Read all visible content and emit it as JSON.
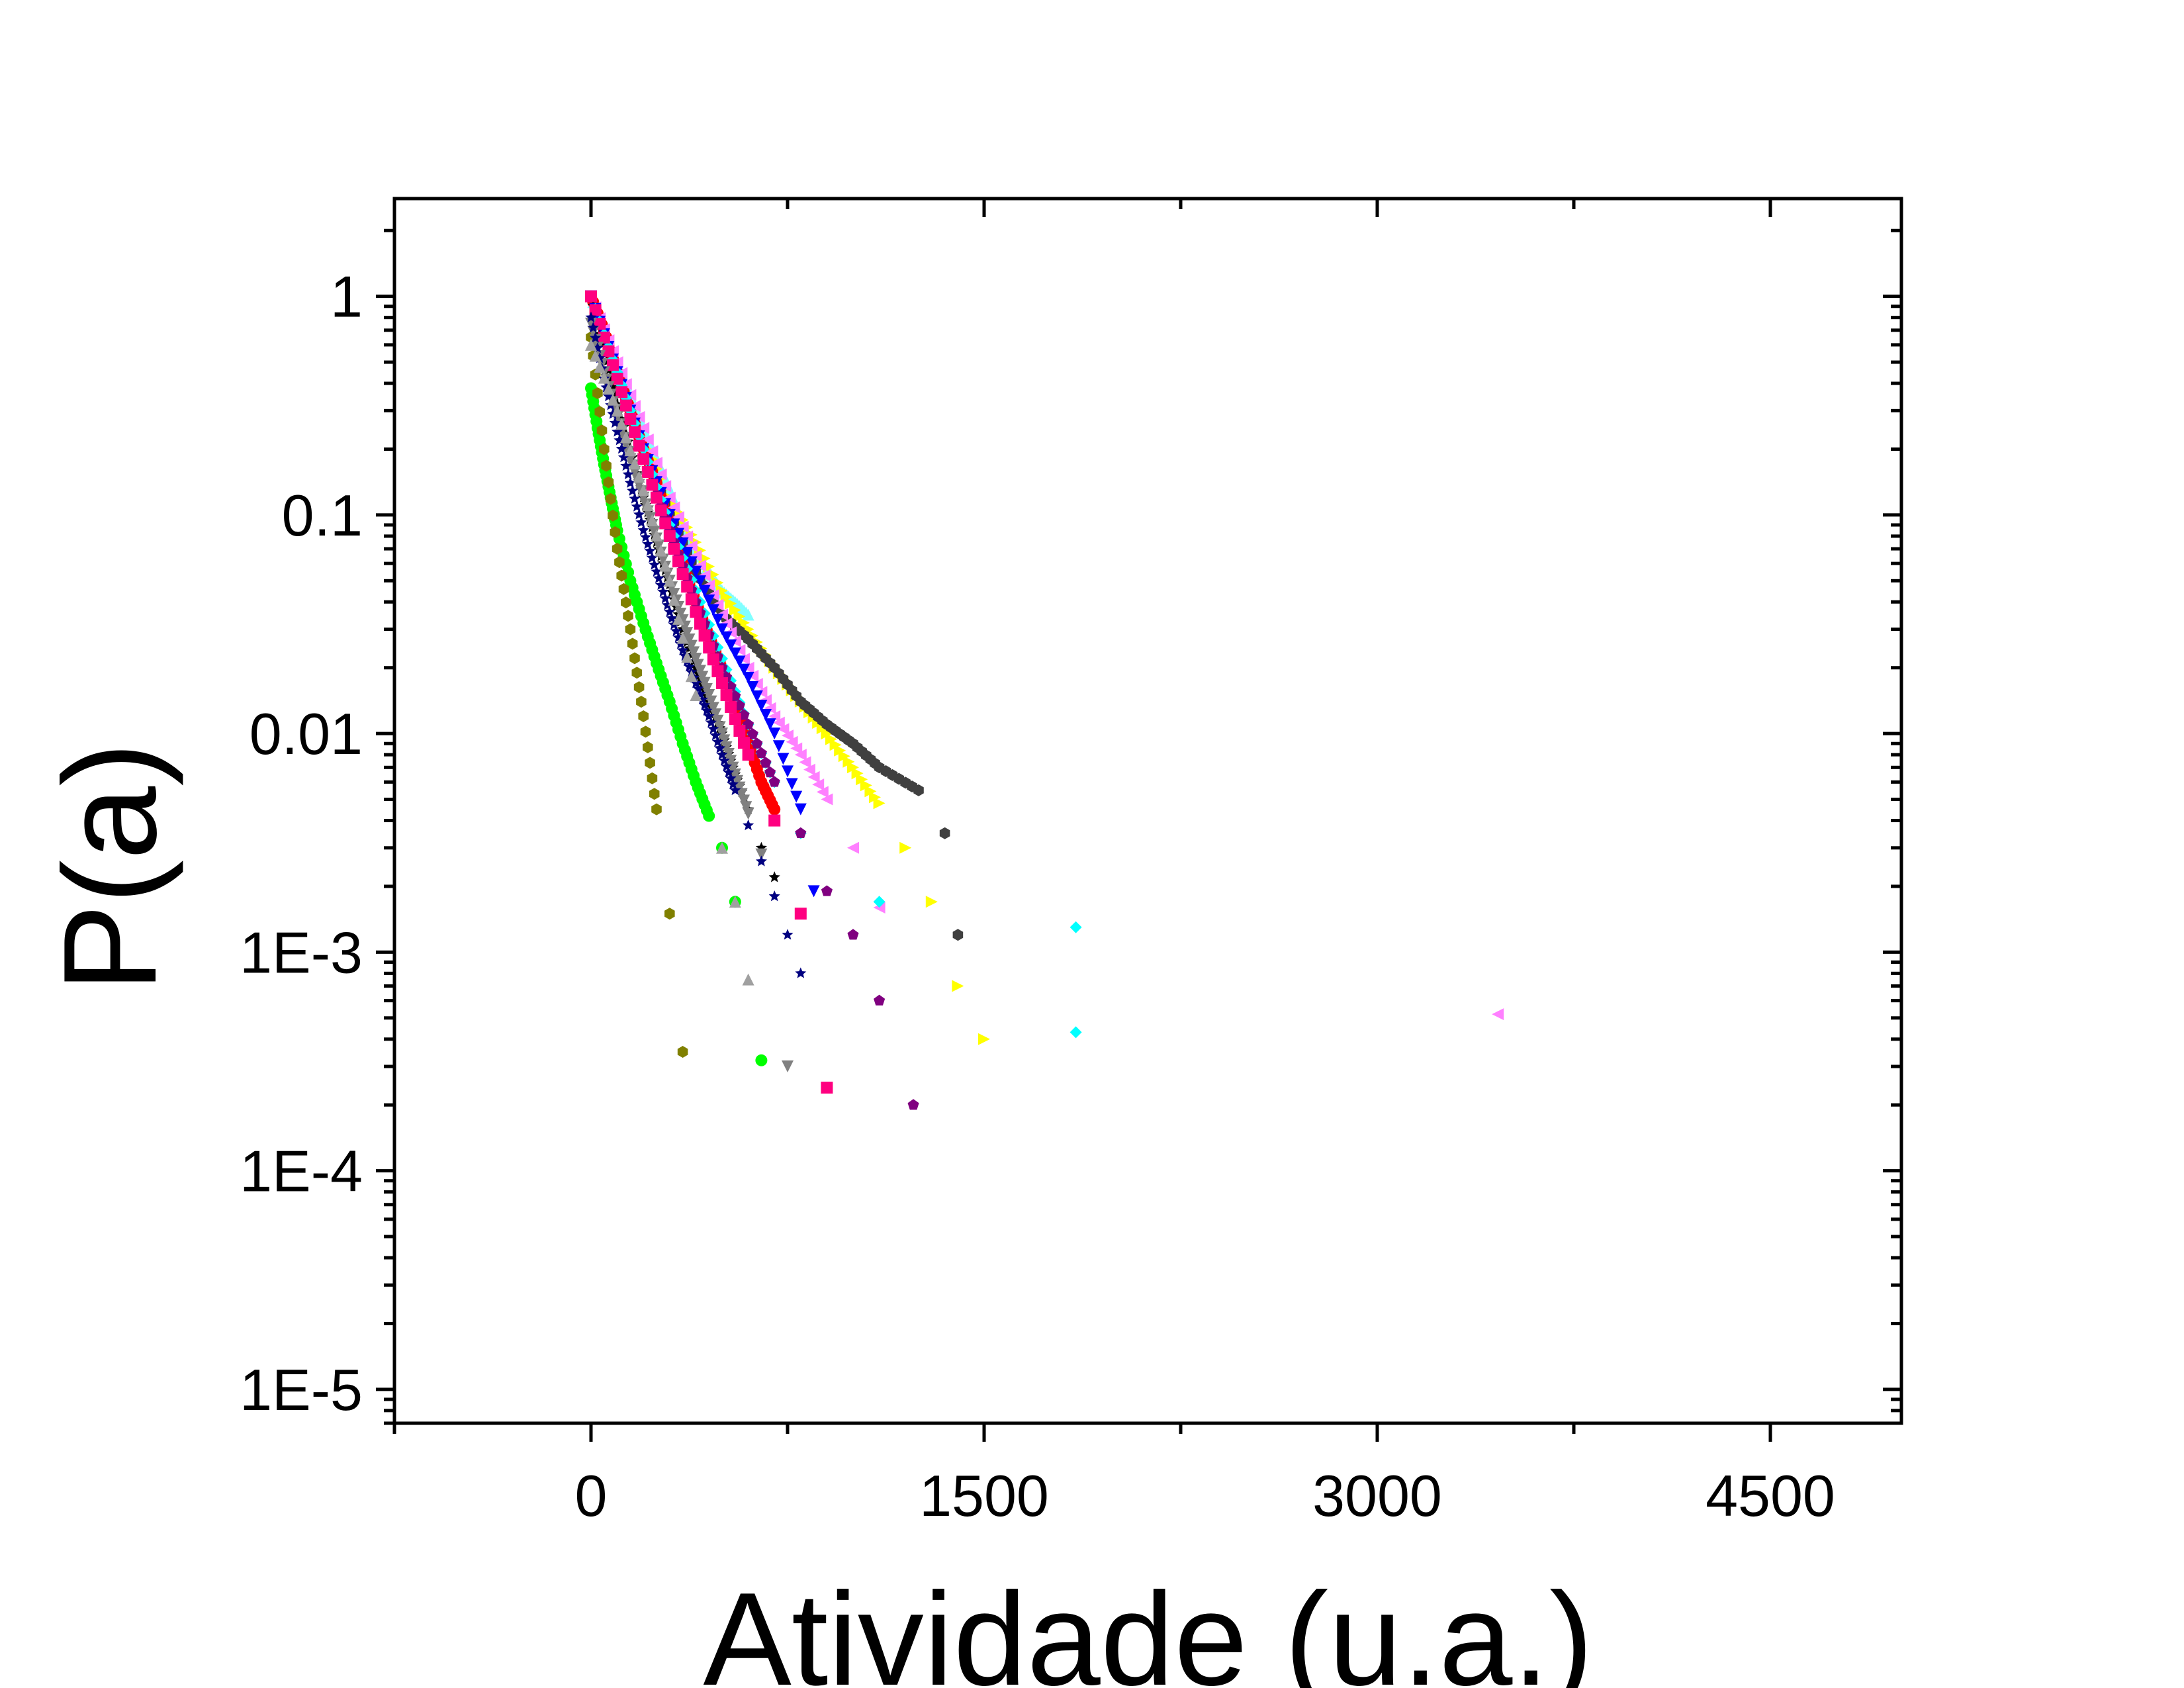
{
  "chart_data": {
    "type": "scatter",
    "title": "",
    "xlabel": "Atividade (u.a.)",
    "ylabel": "P(a)",
    "xlim": [
      -750,
      5000
    ],
    "ylim": [
      7e-06,
      2.8
    ],
    "yscale": "log",
    "x_ticks": [
      0,
      1500,
      3000,
      4500
    ],
    "x_tick_labels": [
      "0",
      "1500",
      "3000",
      "4500"
    ],
    "y_ticks": [
      1,
      0.1,
      0.01,
      0.001,
      0.0001,
      1e-05
    ],
    "y_tick_labels": [
      "1",
      "0.1",
      "0.01",
      "1E-3",
      "1E-4",
      "1E-5"
    ],
    "grid": false,
    "legend": "none",
    "series": [
      {
        "color": "#80FFFF",
        "marker": "triangle-up",
        "x": [
          0,
          50,
          100,
          150,
          200,
          250,
          300,
          350,
          400,
          450,
          500,
          550,
          600
        ],
        "y": [
          1,
          0.7,
          0.5,
          0.35,
          0.25,
          0.18,
          0.13,
          0.09,
          0.07,
          0.055,
          0.045,
          0.04,
          0.035
        ]
      },
      {
        "color": "#FFFF00",
        "marker": "triangle-right",
        "x": [
          0,
          100,
          200,
          300,
          400,
          500,
          600,
          700,
          800,
          900,
          1000,
          1100,
          1200,
          1300,
          1400,
          1500
        ],
        "y": [
          1,
          0.45,
          0.22,
          0.12,
          0.075,
          0.045,
          0.03,
          0.02,
          0.014,
          0.01,
          0.007,
          0.0048,
          0.003,
          0.0017,
          0.0007,
          0.0004
        ]
      },
      {
        "color": "#404040",
        "marker": "hexagon",
        "x": [
          0,
          100,
          200,
          300,
          400,
          500,
          600,
          700,
          800,
          900,
          1000,
          1100,
          1250,
          1350,
          1400
        ],
        "y": [
          1,
          0.42,
          0.2,
          0.1,
          0.055,
          0.035,
          0.027,
          0.02,
          0.014,
          0.011,
          0.009,
          0.007,
          0.0055,
          0.0035,
          0.0012
        ]
      },
      {
        "color": "#FF0000",
        "marker": "circle",
        "x": [
          0,
          50,
          100,
          150,
          200,
          250,
          300,
          350,
          400,
          450,
          500,
          550,
          600,
          650,
          700
        ],
        "y": [
          1,
          0.7,
          0.45,
          0.3,
          0.2,
          0.14,
          0.09,
          0.06,
          0.04,
          0.028,
          0.02,
          0.014,
          0.009,
          0.006,
          0.0045
        ]
      },
      {
        "color": "#000000",
        "marker": "star",
        "x": [
          0,
          50,
          100,
          150,
          200,
          250,
          300,
          350,
          400,
          450,
          500,
          550,
          600,
          650,
          700
        ],
        "y": [
          1,
          0.55,
          0.32,
          0.2,
          0.12,
          0.075,
          0.048,
          0.03,
          0.02,
          0.014,
          0.01,
          0.0065,
          0.0045,
          0.003,
          0.0022
        ]
      },
      {
        "color": "#FF80FF",
        "marker": "triangle-left",
        "x": [
          0,
          100,
          200,
          300,
          400,
          500,
          600,
          700,
          800,
          900,
          1000,
          1100,
          3460
        ],
        "y": [
          1,
          0.5,
          0.25,
          0.12,
          0.065,
          0.035,
          0.02,
          0.012,
          0.008,
          0.005,
          0.003,
          0.0016,
          0.00052
        ]
      },
      {
        "color": "#0000FF",
        "marker": "triangle-down",
        "x": [
          0,
          100,
          200,
          300,
          400,
          500,
          600,
          700,
          800,
          850
        ],
        "y": [
          1,
          0.45,
          0.2,
          0.1,
          0.055,
          0.03,
          0.018,
          0.01,
          0.0045,
          0.0019
        ]
      },
      {
        "color": "#00FF00",
        "marker": "circle",
        "x": [
          0,
          25,
          50,
          75,
          100,
          150,
          200,
          250,
          300,
          350,
          400,
          450,
          500,
          550,
          650
        ],
        "y": [
          0.38,
          0.25,
          0.17,
          0.12,
          0.085,
          0.05,
          0.032,
          0.021,
          0.014,
          0.009,
          0.006,
          0.0042,
          0.003,
          0.0017,
          0.00032
        ]
      },
      {
        "color": "#808000",
        "marker": "hexagon",
        "x": [
          0,
          50,
          100,
          150,
          200,
          250,
          300,
          350
        ],
        "y": [
          0.65,
          0.2,
          0.07,
          0.03,
          0.012,
          0.0045,
          0.0015,
          0.00035
        ]
      },
      {
        "color": "#00FFFF",
        "marker": "diamond",
        "x": [
          0,
          100,
          200,
          300,
          400,
          500,
          600,
          700,
          800,
          1100,
          1850,
          1850
        ],
        "y": [
          1,
          0.45,
          0.2,
          0.09,
          0.045,
          0.022,
          0.011,
          0.006,
          0.0035,
          0.0017,
          0.0013,
          0.00043
        ]
      },
      {
        "color": "#800080",
        "marker": "pentagon",
        "x": [
          0,
          100,
          200,
          300,
          400,
          500,
          600,
          700,
          800,
          900,
          1000,
          1100,
          1230
        ],
        "y": [
          1,
          0.42,
          0.18,
          0.085,
          0.04,
          0.02,
          0.011,
          0.006,
          0.0035,
          0.0019,
          0.0012,
          0.0006,
          0.0002
        ]
      },
      {
        "color": "#FF0080",
        "marker": "square",
        "x": [
          0,
          100,
          200,
          300,
          400,
          500,
          600,
          700,
          800,
          900
        ],
        "y": [
          1,
          0.42,
          0.18,
          0.08,
          0.036,
          0.017,
          0.008,
          0.004,
          0.0015,
          0.00024
        ]
      },
      {
        "color": "#808080",
        "marker": "triangle-down",
        "x": [
          0,
          50,
          100,
          150,
          200,
          250,
          300,
          350,
          400,
          450,
          500,
          550,
          600,
          650,
          750
        ],
        "y": [
          0.75,
          0.45,
          0.28,
          0.18,
          0.12,
          0.078,
          0.05,
          0.033,
          0.022,
          0.015,
          0.01,
          0.0065,
          0.0043,
          0.0028,
          0.0003
        ]
      },
      {
        "color": "#000080",
        "marker": "star",
        "x": [
          0,
          50,
          100,
          150,
          200,
          250,
          300,
          350,
          400,
          450,
          500,
          550,
          600,
          650,
          700,
          750,
          800
        ],
        "y": [
          0.8,
          0.42,
          0.24,
          0.14,
          0.085,
          0.055,
          0.036,
          0.024,
          0.017,
          0.012,
          0.008,
          0.0055,
          0.0038,
          0.0026,
          0.0018,
          0.0012,
          0.0008
        ]
      },
      {
        "color": "#A0A0A0",
        "marker": "triangle-up",
        "x": [
          0,
          100,
          200,
          300,
          400,
          500,
          550,
          600
        ],
        "y": [
          0.6,
          0.3,
          0.13,
          0.05,
          0.015,
          0.003,
          0.0017,
          0.00075
        ]
      }
    ]
  }
}
